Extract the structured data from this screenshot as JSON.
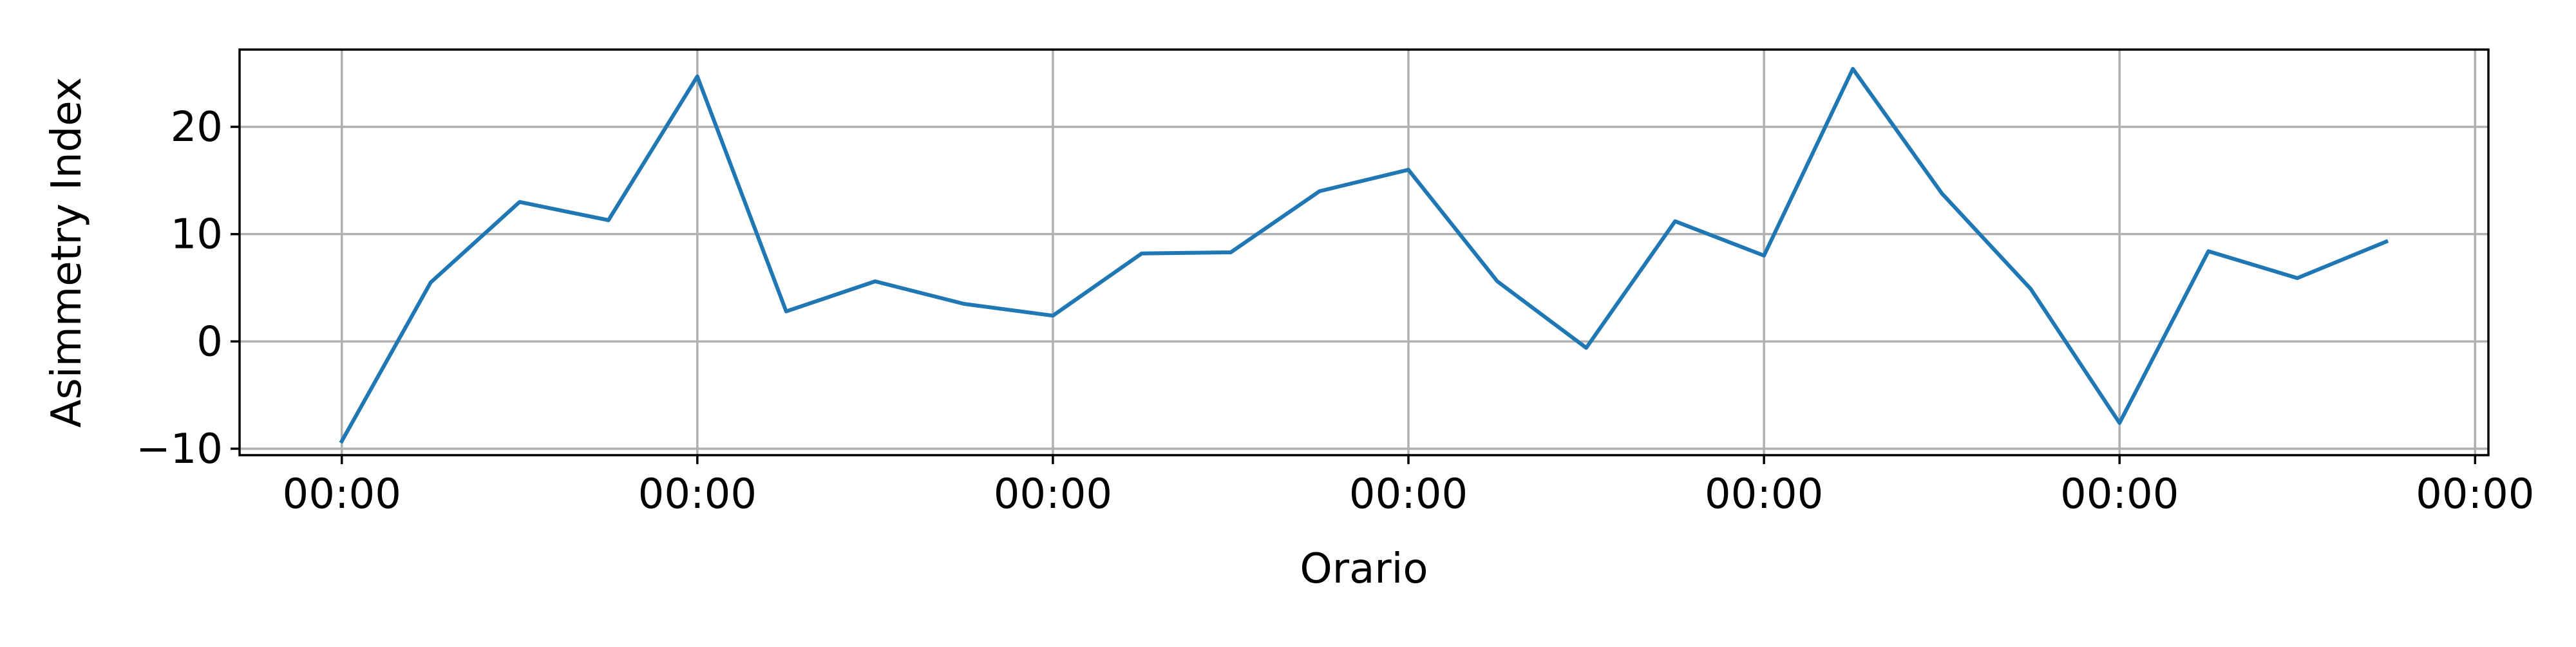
{
  "chart_data": {
    "type": "line",
    "title": "",
    "xlabel": "Orario",
    "ylabel": "Asimmetry Index",
    "x_tick_labels": [
      "00:00",
      "00:00",
      "00:00",
      "00:00",
      "00:00",
      "00:00",
      "00:00"
    ],
    "x_tick_positions": [
      0,
      4,
      8,
      12,
      16,
      20,
      24
    ],
    "y_ticks": [
      -10,
      0,
      10,
      20
    ],
    "xlim": [
      -1.15,
      24.15
    ],
    "ylim": [
      -10.6,
      27.2
    ],
    "grid": true,
    "series": [
      {
        "color": "#1f77b4",
        "x": [
          0,
          1,
          2,
          3,
          4,
          5,
          6,
          7,
          8,
          9,
          10,
          11,
          12,
          13,
          14,
          15,
          16,
          17,
          18,
          19,
          20,
          21,
          22,
          23
        ],
        "values": [
          -9.3,
          5.5,
          13.0,
          11.3,
          24.7,
          2.8,
          5.6,
          3.5,
          2.4,
          8.2,
          8.3,
          14.0,
          16.0,
          5.6,
          -0.6,
          11.2,
          8.0,
          25.4,
          13.8,
          4.9,
          -7.6,
          8.4,
          5.9,
          9.3
        ]
      }
    ]
  }
}
